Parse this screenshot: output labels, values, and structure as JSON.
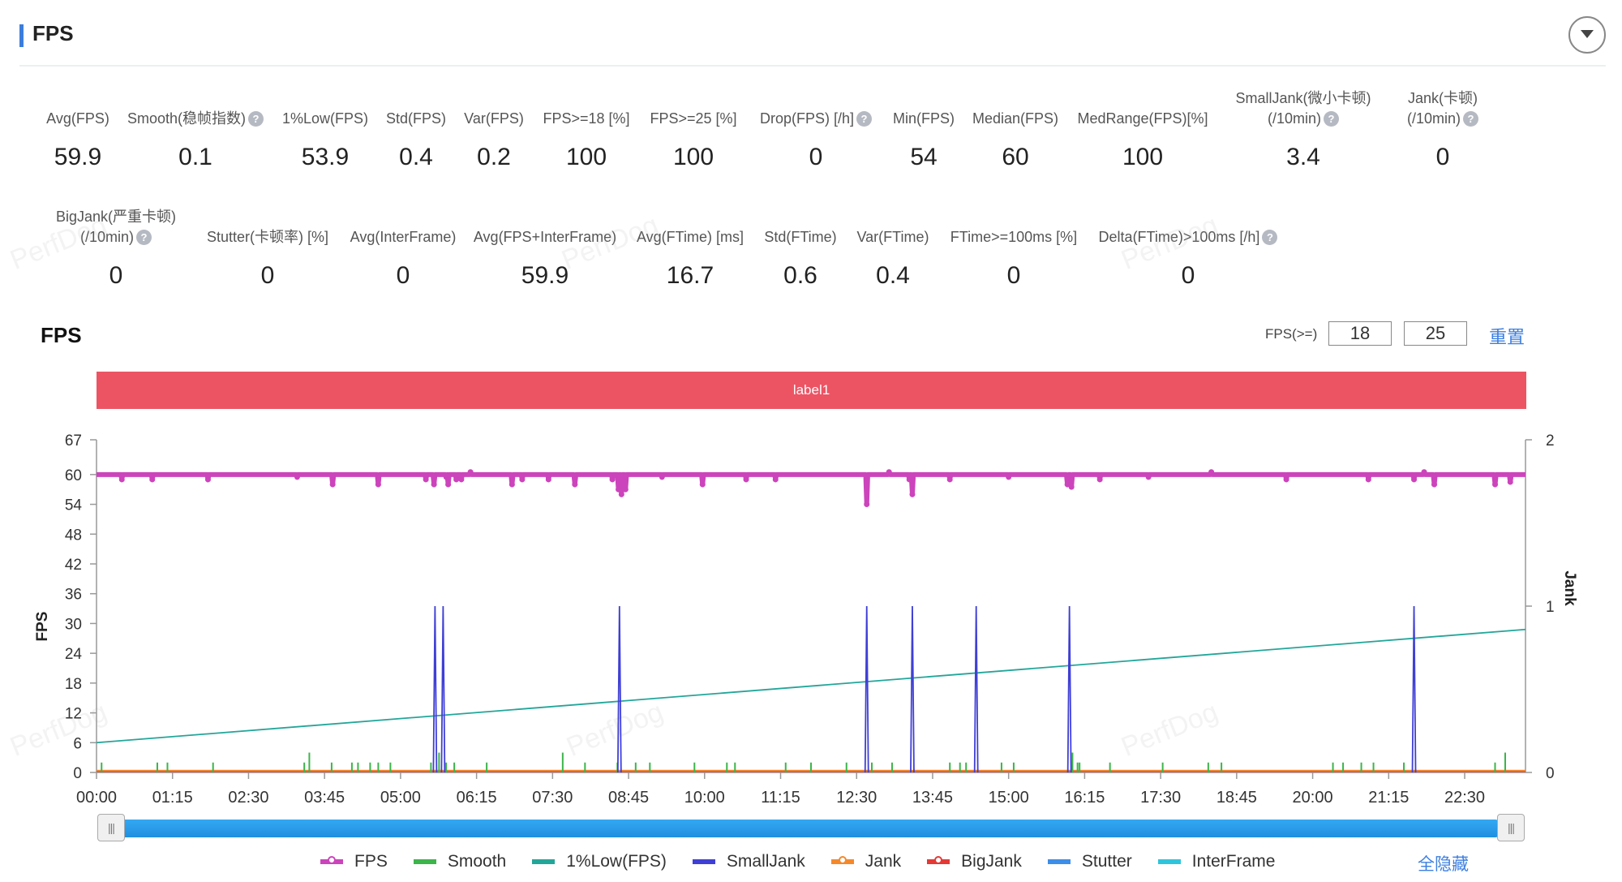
{
  "section": {
    "title": "FPS"
  },
  "accent_color": "#3b7ddd",
  "metrics_row1": [
    {
      "label": "Avg(FPS)",
      "value": "59.9",
      "help": false
    },
    {
      "label": "Smooth(稳帧指数)",
      "value": "0.1",
      "help": true
    },
    {
      "label": "1%Low(FPS)",
      "value": "53.9",
      "help": false
    },
    {
      "label": "Std(FPS)",
      "value": "0.4",
      "help": false
    },
    {
      "label": "Var(FPS)",
      "value": "0.2",
      "help": false
    },
    {
      "label": "FPS>=18 [%]",
      "value": "100",
      "help": false
    },
    {
      "label": "FPS>=25 [%]",
      "value": "100",
      "help": false
    },
    {
      "label": "Drop(FPS) [/h]",
      "value": "0",
      "help": true
    },
    {
      "label": "Min(FPS)",
      "value": "54",
      "help": false
    },
    {
      "label": "Median(FPS)",
      "value": "60",
      "help": false
    },
    {
      "label": "MedRange(FPS)[%]",
      "value": "100",
      "help": false
    },
    {
      "label": "SmallJank(微小卡顿)",
      "label2": "(/10min)",
      "value": "3.4",
      "help": true
    },
    {
      "label": "Jank(卡顿)",
      "label2": "(/10min)",
      "value": "0",
      "help": true
    }
  ],
  "metrics_row2": [
    {
      "label": "BigJank(严重卡顿)",
      "label2": "(/10min)",
      "value": "0",
      "help": true
    },
    {
      "label": "Stutter(卡顿率) [%]",
      "value": "0",
      "help": false
    },
    {
      "label": "Avg(InterFrame)",
      "value": "0",
      "help": false
    },
    {
      "label": "Avg(FPS+InterFrame)",
      "value": "59.9",
      "help": false
    },
    {
      "label": "Avg(FTime) [ms]",
      "value": "16.7",
      "help": false
    },
    {
      "label": "Std(FTime)",
      "value": "0.6",
      "help": false
    },
    {
      "label": "Var(FTime)",
      "value": "0.4",
      "help": false
    },
    {
      "label": "FTime>=100ms [%]",
      "value": "0",
      "help": false
    },
    {
      "label": "Delta(FTime)>100ms [/h]",
      "value": "0",
      "help": true
    }
  ],
  "chart_header": {
    "title": "FPS",
    "threshold_label": "FPS(>=)",
    "threshold1": "18",
    "threshold2": "25",
    "reset_label": "重置"
  },
  "label_bar": {
    "text": "label1",
    "color": "#ec5464"
  },
  "watermark_text": "PerfDog",
  "legend": {
    "items": [
      {
        "name": "FPS",
        "color": "#cc44bb",
        "marker": true
      },
      {
        "name": "Smooth",
        "color": "#3cb54a",
        "marker": false
      },
      {
        "name": "1%Low(FPS)",
        "color": "#23a69a",
        "marker": false
      },
      {
        "name": "SmallJank",
        "color": "#3f3fd6",
        "marker": false
      },
      {
        "name": "Jank",
        "color": "#f5882a",
        "marker": true
      },
      {
        "name": "BigJank",
        "color": "#e53935",
        "marker": true
      },
      {
        "name": "Stutter",
        "color": "#3d8ee8",
        "marker": false
      },
      {
        "name": "InterFrame",
        "color": "#2ec5dc",
        "marker": false
      }
    ],
    "hide_all_label": "全隐藏"
  },
  "chart_data": {
    "type": "line",
    "xlabel": "",
    "ylabel": "FPS",
    "y2label": "Jank",
    "x_ticks": [
      "00:00",
      "01:15",
      "02:30",
      "03:45",
      "05:00",
      "06:15",
      "07:30",
      "08:45",
      "10:00",
      "11:15",
      "12:30",
      "13:45",
      "15:00",
      "16:15",
      "17:30",
      "18:45",
      "20:00",
      "21:15",
      "22:30"
    ],
    "xlim_minutes": [
      0,
      1410
    ],
    "y_ticks": [
      0,
      6,
      12,
      18,
      24,
      30,
      36,
      42,
      48,
      54,
      60,
      67
    ],
    "ylim": [
      0,
      67
    ],
    "y2_ticks": [
      0,
      1,
      2
    ],
    "y2lim": [
      0,
      2
    ],
    "grid": false,
    "series": [
      {
        "name": "FPS",
        "axis": "left",
        "baseline": 60,
        "dips": [
          [
            25,
            59
          ],
          [
            55,
            59
          ],
          [
            110,
            59
          ],
          [
            198,
            59.5
          ],
          [
            233,
            58
          ],
          [
            278,
            58
          ],
          [
            325,
            59
          ],
          [
            333,
            58
          ],
          [
            345,
            59.5
          ],
          [
            347,
            58
          ],
          [
            355,
            59
          ],
          [
            360,
            59
          ],
          [
            369,
            60.5
          ],
          [
            410,
            58
          ],
          [
            420,
            59
          ],
          [
            446,
            59
          ],
          [
            472,
            58
          ],
          [
            509,
            59
          ],
          [
            515,
            57
          ],
          [
            518,
            56
          ],
          [
            522,
            57
          ],
          [
            558,
            59.5
          ],
          [
            598,
            58
          ],
          [
            641,
            59
          ],
          [
            670,
            59
          ],
          [
            760,
            54
          ],
          [
            782,
            60.5
          ],
          [
            802,
            59
          ],
          [
            805,
            56
          ],
          [
            842,
            59
          ],
          [
            900,
            59.5
          ],
          [
            958,
            58
          ],
          [
            962,
            57.5
          ],
          [
            990,
            59
          ],
          [
            1038,
            59.5
          ],
          [
            1100,
            60.5
          ],
          [
            1174,
            59
          ],
          [
            1255,
            59
          ],
          [
            1300,
            59
          ],
          [
            1310,
            60.5
          ],
          [
            1320,
            58
          ],
          [
            1380,
            58
          ],
          [
            1395,
            58.5
          ]
        ]
      },
      {
        "name": "1%Low(FPS)",
        "axis": "left",
        "x": [
          0,
          1410
        ],
        "values": [
          6,
          28.8
        ]
      },
      {
        "name": "SmallJank",
        "axis": "right",
        "x": [
          334,
          342,
          516,
          760,
          805,
          868,
          960,
          1300
        ],
        "values": [
          1,
          1,
          1,
          1,
          1,
          1,
          1,
          1
        ]
      },
      {
        "name": "Smooth",
        "axis": "left",
        "x": [
          5,
          60,
          70,
          115,
          205,
          210,
          232,
          252,
          258,
          270,
          278,
          290,
          330,
          338,
          345,
          353,
          385,
          460,
          482,
          514,
          532,
          546,
          590,
          622,
          630,
          680,
          705,
          740,
          765,
          785,
          842,
          852,
          858,
          893,
          905,
          963,
          968,
          970,
          1000,
          1052,
          1097,
          1110,
          1220,
          1230,
          1248,
          1260,
          1290,
          1380,
          1390
        ],
        "values": [
          2,
          2,
          2,
          2,
          2,
          4,
          2,
          2,
          2,
          2,
          2,
          2,
          2,
          4,
          2,
          2,
          2,
          4,
          2,
          2,
          2,
          2,
          2,
          2,
          2,
          2,
          2,
          2,
          2,
          2,
          2,
          2,
          2,
          2,
          2,
          4,
          2,
          2,
          2,
          2,
          2,
          2,
          2,
          2,
          2,
          2,
          2,
          2,
          4
        ]
      },
      {
        "name": "Jank",
        "axis": "right",
        "values": []
      },
      {
        "name": "BigJank",
        "axis": "right",
        "values": []
      },
      {
        "name": "Stutter",
        "axis": "left",
        "values": []
      },
      {
        "name": "InterFrame",
        "axis": "left",
        "values": []
      }
    ]
  }
}
